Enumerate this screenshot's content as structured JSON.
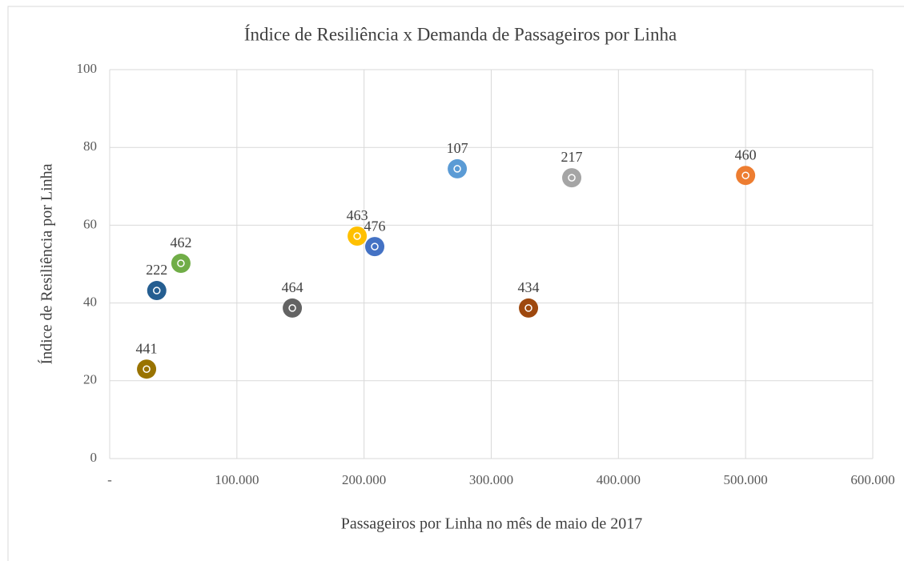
{
  "chart_data": {
    "type": "scatter",
    "title": "Índice de Resiliência x Demanda de Passageiros por Linha",
    "xlabel": "Passageiros por Linha no mês de maio de 2017",
    "ylabel": "Índice de Resiliência por Linha",
    "labels": [
      "441",
      "222",
      "462",
      "464",
      "463",
      "476",
      "107",
      "434",
      "217",
      "460"
    ],
    "x": [
      29000,
      37000,
      56000,
      143600,
      194600,
      208400,
      273300,
      329300,
      363300,
      500000
    ],
    "values": [
      23,
      43.2,
      50.2,
      38.7,
      57.2,
      54.5,
      74.5,
      38.7,
      72.2,
      72.8
    ],
    "colors": [
      "#997300",
      "#255e91",
      "#70ad47",
      "#636363",
      "#ffc000",
      "#4472c4",
      "#5b9bd5",
      "#9e480e",
      "#a5a5a5",
      "#ed7d31"
    ],
    "xlim": [
      0,
      600000
    ],
    "xticks": [
      {
        "value": 0,
        "label": "-"
      },
      {
        "value": 100000,
        "label": "100.000"
      },
      {
        "value": 200000,
        "label": "200.000"
      },
      {
        "value": 300000,
        "label": "300.000"
      },
      {
        "value": 400000,
        "label": "400.000"
      },
      {
        "value": 500000,
        "label": "500.000"
      },
      {
        "value": 600000,
        "label": "600.000"
      }
    ],
    "ylim": [
      0,
      100
    ],
    "yticks": [
      0,
      20,
      40,
      60,
      80,
      100
    ],
    "grid": true
  }
}
